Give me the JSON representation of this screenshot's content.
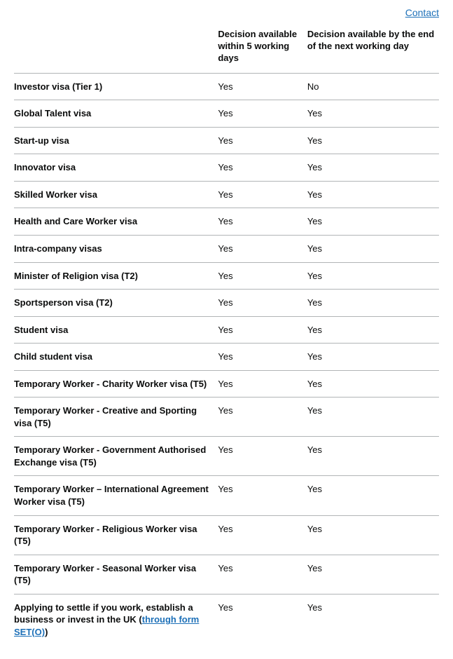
{
  "contact_label": "Contact",
  "table": {
    "columns": {
      "name": "",
      "col1": "Decision available within 5 working days",
      "col2": "Decision available by the end of the next working day"
    },
    "rows": [
      {
        "name": "Investor visa (Tier 1)",
        "col1": "Yes",
        "col2": "No"
      },
      {
        "name": "Global Talent visa",
        "col1": "Yes",
        "col2": "Yes"
      },
      {
        "name": "Start-up visa",
        "col1": "Yes",
        "col2": "Yes"
      },
      {
        "name": "Innovator visa",
        "col1": "Yes",
        "col2": "Yes"
      },
      {
        "name": "Skilled Worker visa",
        "col1": "Yes",
        "col2": "Yes"
      },
      {
        "name": "Health and Care Worker visa",
        "col1": "Yes",
        "col2": "Yes"
      },
      {
        "name": "Intra-company visas",
        "col1": "Yes",
        "col2": "Yes"
      },
      {
        "name": "Minister of Religion visa (T2)",
        "col1": "Yes",
        "col2": "Yes"
      },
      {
        "name": "Sportsperson visa (T2)",
        "col1": "Yes",
        "col2": "Yes"
      },
      {
        "name": "Student visa",
        "col1": "Yes",
        "col2": "Yes"
      },
      {
        "name": "Child student visa",
        "col1": "Yes",
        "col2": "Yes"
      },
      {
        "name": "Temporary Worker - Charity Worker visa (T5)",
        "col1": "Yes",
        "col2": "Yes"
      },
      {
        "name": "Temporary Worker - Creative and Sporting visa (T5)",
        "col1": "Yes",
        "col2": "Yes"
      },
      {
        "name": "Temporary Worker - Government Authorised Exchange visa (T5)",
        "col1": "Yes",
        "col2": "Yes"
      },
      {
        "name": "Temporary Worker – International Agreement Worker visa (T5)",
        "col1": "Yes",
        "col2": "Yes"
      },
      {
        "name": "Temporary Worker - Religious Worker visa (T5)",
        "col1": "Yes",
        "col2": "Yes"
      },
      {
        "name": "Temporary Worker - Seasonal Worker visa (T5)",
        "col1": "Yes",
        "col2": "Yes"
      },
      {
        "name_prefix": "Applying to settle if you work, establish a business or invest in the UK (",
        "link_text": "through form SET(O)",
        "name_suffix": ")",
        "col1": "Yes",
        "col2": "Yes",
        "has_link": true
      }
    ]
  },
  "styling": {
    "text_color": "#0b0c0c",
    "link_color": "#1d70b8",
    "border_color": "#b1b4b6",
    "background_color": "#ffffff",
    "font_size_body": 13,
    "font_size_link": 14
  }
}
